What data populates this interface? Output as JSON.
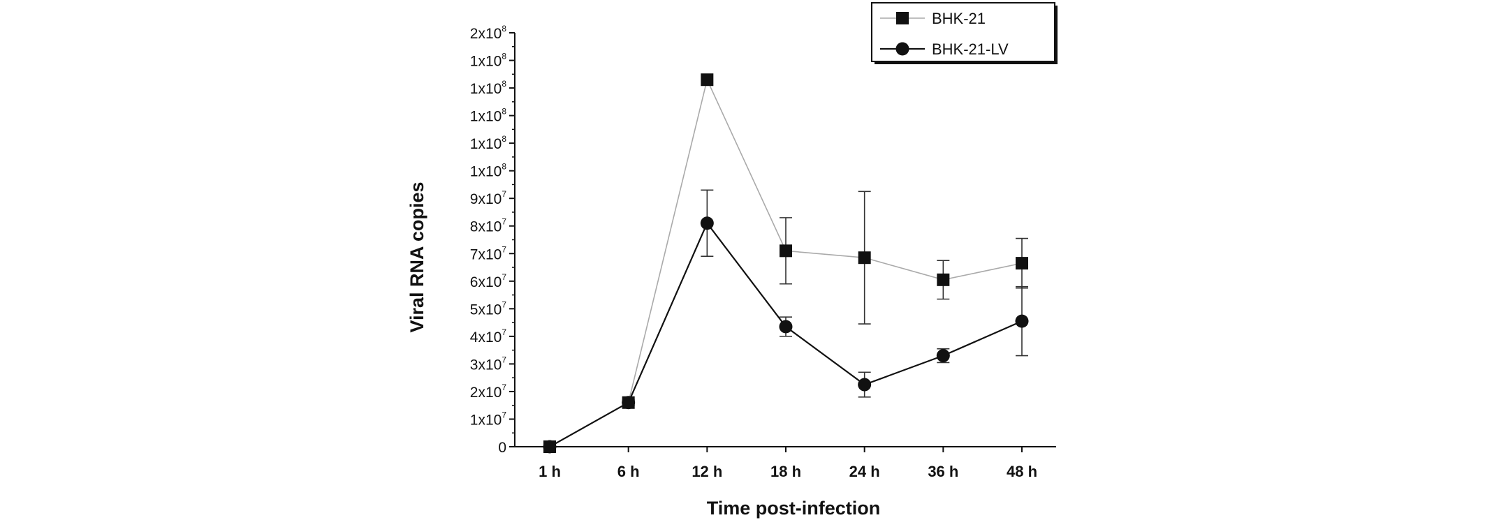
{
  "chart_data": {
    "type": "line",
    "xlabel": "Time post-infection",
    "ylabel": "Viral RNA copies",
    "categories": [
      "1 h",
      "6 h",
      "12 h",
      "18 h",
      "24 h",
      "36 h",
      "48 h"
    ],
    "ylim": [
      0,
      150000000
    ],
    "yticks": [
      {
        "value": 0,
        "label": "0"
      },
      {
        "value": 10000000,
        "mantissa": "1x10",
        "exp": "7"
      },
      {
        "value": 20000000,
        "mantissa": "2x10",
        "exp": "7"
      },
      {
        "value": 30000000,
        "mantissa": "3x10",
        "exp": "7"
      },
      {
        "value": 40000000,
        "mantissa": "4x10",
        "exp": "7"
      },
      {
        "value": 50000000,
        "mantissa": "5x10",
        "exp": "7"
      },
      {
        "value": 60000000,
        "mantissa": "6x10",
        "exp": "7"
      },
      {
        "value": 70000000,
        "mantissa": "7x10",
        "exp": "7"
      },
      {
        "value": 80000000,
        "mantissa": "8x10",
        "exp": "7"
      },
      {
        "value": 90000000,
        "mantissa": "9x10",
        "exp": "7"
      },
      {
        "value": 100000000,
        "mantissa": "1x10",
        "exp": "8"
      },
      {
        "value": 110000000,
        "mantissa": "1x10",
        "exp": "8"
      },
      {
        "value": 120000000,
        "mantissa": "1x10",
        "exp": "8"
      },
      {
        "value": 130000000,
        "mantissa": "1x10",
        "exp": "8"
      },
      {
        "value": 140000000,
        "mantissa": "1x10",
        "exp": "8"
      },
      {
        "value": 150000000,
        "mantissa": "2x10",
        "exp": "8"
      }
    ],
    "series": [
      {
        "name": "BHK-21",
        "marker": "square",
        "color": "#aaaaaa",
        "values": [
          0,
          16000000,
          133000000,
          71000000,
          68500000,
          60500000,
          66500000
        ],
        "errors": [
          0,
          1000000,
          0,
          12000000,
          24000000,
          7000000,
          9000000
        ]
      },
      {
        "name": "BHK-21-LV",
        "marker": "circle",
        "color": "#111111",
        "values": [
          0,
          16000000,
          81000000,
          43500000,
          22500000,
          33000000,
          45500000
        ],
        "errors": [
          0,
          1000000,
          12000000,
          3500000,
          4500000,
          2500000,
          12500000
        ]
      }
    ],
    "legend_position": "top-right",
    "grid": false
  }
}
